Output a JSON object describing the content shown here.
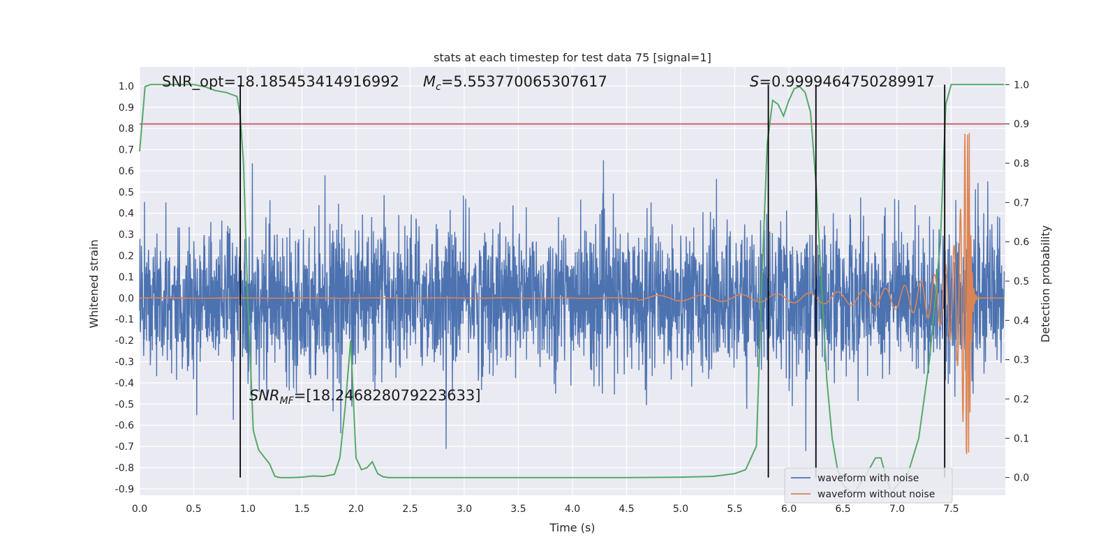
{
  "chart_data": {
    "type": "line",
    "title": "stats at each timestep for test data 75 [signal=1]",
    "xlabel": "Time (s)",
    "ylabel_left": "Whitened strain",
    "ylabel_right": "Detection probability",
    "xlim": [
      0.0,
      8.0
    ],
    "ylim_left": [
      -0.93,
      1.09
    ],
    "ylim_right": [
      -0.045,
      1.045
    ],
    "x_ticks": [
      "0.0",
      "0.5",
      "1.0",
      "1.5",
      "2.0",
      "2.5",
      "3.0",
      "3.5",
      "4.0",
      "4.5",
      "5.0",
      "5.5",
      "6.0",
      "6.5",
      "7.0",
      "7.5"
    ],
    "y_ticks_left": [
      "1.0",
      "0.9",
      "0.8",
      "0.7",
      "0.6",
      "0.5",
      "0.4",
      "0.3",
      "0.2",
      "0.1",
      "0.0",
      "-0.1",
      "-0.2",
      "-0.3",
      "-0.4",
      "-0.5",
      "-0.6",
      "-0.7",
      "-0.8",
      "-0.9"
    ],
    "y_ticks_right": [
      "1.0",
      "0.9",
      "0.8",
      "0.7",
      "0.6",
      "0.5",
      "0.4",
      "0.3",
      "0.2",
      "0.1",
      "0.0"
    ],
    "annotations": {
      "snr_opt": "SNR_opt=18.185453414916992",
      "mc": "=5.553770065307617",
      "s": "=0.9999464750289917",
      "snr_mf": "=[18.246828079223633]"
    },
    "threshold": 0.9,
    "vertical_lines_x": [
      0.93,
      5.81,
      6.25,
      7.44
    ],
    "detection_probability": {
      "x": [
        0.0,
        0.05,
        0.1,
        0.15,
        0.2,
        0.3,
        0.4,
        0.5,
        0.6,
        0.7,
        0.8,
        0.9,
        0.93,
        0.96,
        1.0,
        1.05,
        1.1,
        1.2,
        1.25,
        1.3,
        1.4,
        1.5,
        1.6,
        1.7,
        1.8,
        1.85,
        1.9,
        1.95,
        2.0,
        2.05,
        2.1,
        2.15,
        2.2,
        2.25,
        2.3,
        2.4,
        2.5,
        3.0,
        3.5,
        4.0,
        4.5,
        5.0,
        5.3,
        5.5,
        5.6,
        5.7,
        5.75,
        5.8,
        5.85,
        5.9,
        5.95,
        6.0,
        6.05,
        6.1,
        6.15,
        6.2,
        6.25,
        6.3,
        6.35,
        6.4,
        6.45,
        6.5,
        6.6,
        6.7,
        6.8,
        6.85,
        6.9,
        6.95,
        7.0,
        7.1,
        7.2,
        7.3,
        7.4,
        7.45,
        7.5,
        7.55,
        7.6,
        7.65,
        7.7,
        7.8,
        7.99
      ],
      "y": [
        0.83,
        0.995,
        1.0,
        1.0,
        1.0,
        1.0,
        1.0,
        1.0,
        0.995,
        0.985,
        0.98,
        0.97,
        0.92,
        0.8,
        0.45,
        0.12,
        0.07,
        0.035,
        0.003,
        0.0,
        0.0,
        0.001,
        0.004,
        0.003,
        0.008,
        0.05,
        0.18,
        0.35,
        0.05,
        0.02,
        0.025,
        0.04,
        0.01,
        0.002,
        0.0,
        0.0,
        0.0,
        0.0,
        0.0,
        0.0,
        0.0,
        0.001,
        0.003,
        0.01,
        0.02,
        0.08,
        0.5,
        0.85,
        0.96,
        0.95,
        0.92,
        0.96,
        0.99,
        0.995,
        0.98,
        0.93,
        0.75,
        0.5,
        0.25,
        0.1,
        0.02,
        -0.02,
        -0.04,
        0.0,
        0.05,
        0.05,
        0.0,
        -0.04,
        -0.02,
        0.01,
        0.1,
        0.3,
        0.6,
        0.95,
        1.0,
        1.0,
        1.0,
        1.0,
        1.0,
        1.0,
        1.0
      ]
    },
    "series": [
      {
        "name": "waveform with noise",
        "color": "#4c72b0"
      },
      {
        "name": "waveform without noise",
        "color": "#dd8452"
      }
    ],
    "detection_color": "#55a868",
    "threshold_color": "#c44e52",
    "background_color": "#eaeaf2"
  }
}
